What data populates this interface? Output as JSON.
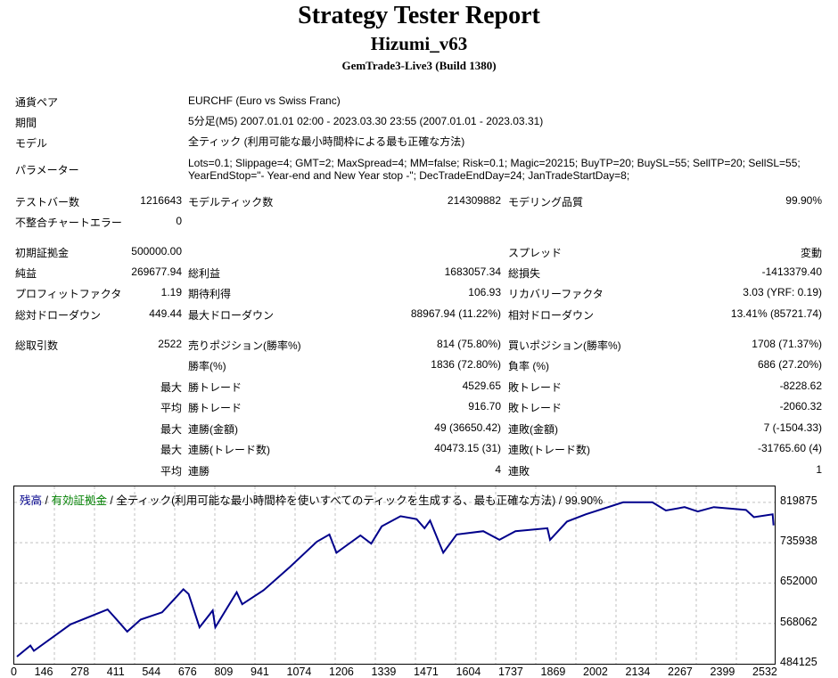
{
  "header": {
    "title": "Strategy Tester Report",
    "ea_name": "Hizumi_v63",
    "build": "GemTrade3-Live3 (Build 1380)"
  },
  "info": [
    {
      "label": "通貨ペア",
      "value": "EURCHF (Euro vs Swiss Franc)"
    },
    {
      "label": "期間",
      "value": "5分足(M5) 2007.01.01 02:00 - 2023.03.30 23:55 (2007.01.01 - 2023.03.31)"
    },
    {
      "label": "モデル",
      "value": "全ティック (利用可能な最小時間枠による最も正確な方法)"
    },
    {
      "label": "パラメーター",
      "value": "Lots=0.1; Slippage=4; GMT=2; MaxSpread=4; MM=false; Risk=0.1; Magic=20215; BuyTP=20; BuySL=55; SellTP=20; SellSL=55;",
      "value2": "YearEndStop=\"- Year-end and New Year stop -\"; DecTradeEndDay=24; JanTradeStartDay=8;"
    }
  ],
  "stats": [
    {
      "l1": "テストバー数",
      "v1": "1216643",
      "l2": "モデルティック数",
      "v2": "214309882",
      "l3": "モデリング品質",
      "v3": "99.90%"
    },
    {
      "l1": "不整合チャートエラー",
      "v1": "0",
      "l2": "",
      "v2": "",
      "l3": "",
      "v3": ""
    },
    {
      "l1": "初期証拠金",
      "v1": "500000.00",
      "l2": "",
      "v2": "",
      "l3": "スプレッド",
      "v3": "変動"
    },
    {
      "l1": "純益",
      "v1": "269677.94",
      "l2": "総利益",
      "v2": "1683057.34",
      "l3": "総損失",
      "v3": "-1413379.40"
    },
    {
      "l1": "プロフィットファクタ",
      "v1": "1.19",
      "l2": "期待利得",
      "v2": "106.93",
      "l3": "リカバリーファクタ",
      "v3": "3.03 (YRF: 0.19)"
    },
    {
      "l1": "総対ドローダウン",
      "v1": "449.44",
      "l2": "最大ドローダウン",
      "v2": "88967.94 (11.22%)",
      "l3": "相対ドローダウン",
      "v3": "13.41% (85721.74)"
    },
    {
      "l1": "総取引数",
      "v1": "2522",
      "l2": "売りポジション(勝率%)",
      "v2": "814 (75.80%)",
      "l3": "買いポジション(勝率%)",
      "v3": "1708 (71.37%)"
    },
    {
      "l1": "",
      "v1": "",
      "l2": "勝率(%)",
      "v2": "1836 (72.80%)",
      "l3": "負率 (%)",
      "v3": "686 (27.20%)"
    },
    {
      "l1": "",
      "v1": "最大",
      "l2": "勝トレード",
      "v2": "4529.65",
      "l3": "敗トレード",
      "v3": "-8228.62"
    },
    {
      "l1": "",
      "v1": "平均",
      "l2": "勝トレード",
      "v2": "916.70",
      "l3": "敗トレード",
      "v3": "-2060.32"
    },
    {
      "l1": "",
      "v1": "最大",
      "l2": "連勝(金額)",
      "v2": "49 (36650.42)",
      "l3": "連敗(金額)",
      "v3": "7 (-1504.33)"
    },
    {
      "l1": "",
      "v1": "最大",
      "l2": "連勝(トレード数)",
      "v2": "40473.15 (31)",
      "l3": "連敗(トレード数)",
      "v3": "-31765.60 (4)"
    },
    {
      "l1": "",
      "v1": "平均",
      "l2": "連勝",
      "v2": "4",
      "l3": "連敗",
      "v3": "1"
    }
  ],
  "chart_data": {
    "type": "line",
    "legend": {
      "balance": "残高",
      "sep1": " / ",
      "equity": "有効証拠金",
      "sep2": " / ",
      "model": "全ティック(利用可能な最小時間枠を使いすべてのティックを生成する、最も正確な方法)",
      "sep3": " / ",
      "quality": "99.90%"
    },
    "colors": {
      "balance": "#00008b",
      "equity": "#008000",
      "grid": "#c0c0c0"
    },
    "xlim": [
      0,
      2590
    ],
    "ylim": [
      484125,
      853000
    ],
    "x_ticks": [
      "0",
      "146",
      "278",
      "411",
      "544",
      "676",
      "809",
      "941",
      "1074",
      "1206",
      "1339",
      "1471",
      "1604",
      "1737",
      "1869",
      "2002",
      "2134",
      "2267",
      "2399",
      "2532"
    ],
    "y_ticks": [
      819875,
      735938,
      652000,
      568062,
      484125
    ],
    "y_tick_labels": [
      "819875",
      "735938",
      "652000",
      "568062",
      "484125"
    ],
    "grid": true,
    "series": [
      {
        "x": [
          0,
          46,
          58,
          183,
          310,
          341,
          377,
          423,
          496,
          569,
          587,
          624,
          669,
          678,
          751,
          770,
          843,
          934,
          1025,
          1068,
          1092,
          1174,
          1211,
          1247,
          1311,
          1366,
          1393,
          1412,
          1457,
          1503,
          1594,
          1649,
          1704,
          1813,
          1822,
          1880,
          1944,
          2072,
          2172,
          2218,
          2282,
          2327,
          2382,
          2492,
          2519,
          2583,
          2586
        ],
        "y": [
          499000,
          522000,
          511000,
          566000,
          597000,
          576000,
          551000,
          576000,
          591000,
          639000,
          629000,
          560000,
          595000,
          560000,
          633000,
          608000,
          637000,
          686000,
          738000,
          753000,
          715000,
          751000,
          734000,
          770000,
          791000,
          785000,
          766000,
          782000,
          715000,
          753000,
          760000,
          742000,
          760000,
          766000,
          742000,
          780000,
          795000,
          820000,
          820000,
          803000,
          810000,
          801000,
          810000,
          804000,
          789000,
          795000,
          772000
        ]
      }
    ]
  }
}
